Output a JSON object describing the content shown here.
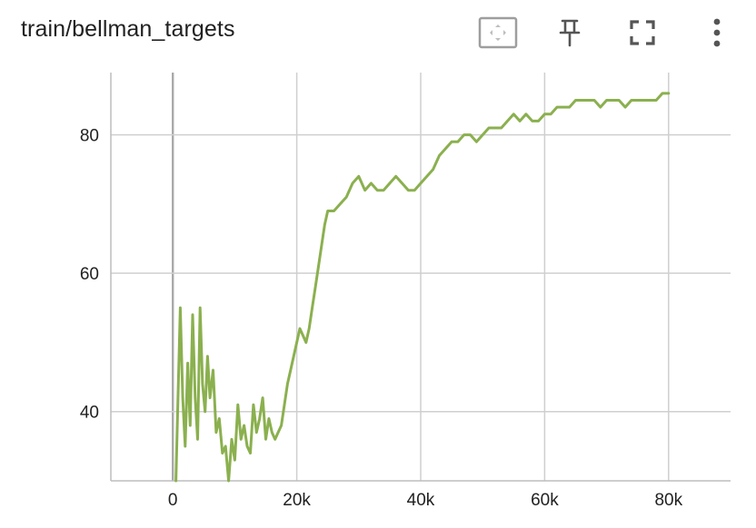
{
  "card": {
    "title": "train/bellman_targets"
  },
  "toolbar": {
    "buttons": [
      {
        "name": "fit-domain-button",
        "icon": "fit-to-data-icon"
      },
      {
        "name": "pin-button",
        "icon": "pin-icon"
      },
      {
        "name": "fullscreen-button",
        "icon": "fullscreen-icon"
      },
      {
        "name": "more-options-button",
        "icon": "more-vert-icon"
      }
    ]
  },
  "colors": {
    "series": "#8bb04f",
    "grid": "#cfcfcf",
    "axis": "#bdbdbd",
    "zero_line": "#a9a9a9",
    "text": "#212121",
    "icon": "#555555"
  },
  "chart_data": {
    "type": "line",
    "title": "train/bellman_targets",
    "xlabel": "",
    "ylabel": "",
    "xlim": [
      -10000,
      90000
    ],
    "ylim": [
      30,
      89
    ],
    "x_ticks": [
      0,
      20000,
      40000,
      60000,
      80000
    ],
    "x_tick_labels": [
      "0",
      "20k",
      "40k",
      "60k",
      "80k"
    ],
    "y_ticks": [
      40,
      60,
      80
    ],
    "y_tick_labels": [
      "40",
      "60",
      "80"
    ],
    "grid": true,
    "legend": "none",
    "series": [
      {
        "x": [
          500,
          800,
          1200,
          1600,
          2000,
          2400,
          2800,
          3200,
          3600,
          4000,
          4400,
          4800,
          5200,
          5600,
          6000,
          6500,
          7000,
          7500,
          8000,
          8500,
          9000,
          9500,
          10000,
          10500,
          11000,
          11500,
          12000,
          12500,
          13000,
          13500,
          14000,
          14500,
          15000,
          15500,
          16000,
          16500,
          17000,
          17500,
          18000,
          18500,
          19000,
          19500,
          20000,
          20500,
          21000,
          21500,
          22000,
          22500,
          23000,
          23500,
          24000,
          24500,
          25000,
          26000,
          27000,
          28000,
          29000,
          30000,
          31000,
          32000,
          33000,
          34000,
          35000,
          36000,
          37000,
          38000,
          39000,
          40000,
          41000,
          42000,
          43000,
          44000,
          45000,
          46000,
          47000,
          48000,
          49000,
          50000,
          51000,
          52000,
          53000,
          54000,
          55000,
          56000,
          57000,
          58000,
          59000,
          60000,
          61000,
          62000,
          63000,
          64000,
          65000,
          66000,
          67000,
          68000,
          69000,
          70000,
          71000,
          72000,
          73000,
          74000,
          75000,
          76000,
          77000,
          78000,
          79000,
          80000
        ],
        "values": [
          30,
          41,
          55,
          42,
          35,
          47,
          38,
          54,
          42,
          36,
          55,
          44,
          40,
          48,
          42,
          46,
          37,
          39,
          34,
          35,
          30,
          36,
          33,
          41,
          36,
          38,
          35,
          34,
          41,
          37,
          39,
          42,
          36,
          39,
          37,
          36,
          37,
          38,
          41,
          44,
          46,
          48,
          50,
          52,
          51,
          50,
          52,
          55,
          58,
          61,
          64,
          67,
          69,
          69,
          70,
          71,
          73,
          74,
          72,
          73,
          72,
          72,
          73,
          74,
          73,
          72,
          72,
          73,
          74,
          75,
          77,
          78,
          79,
          79,
          80,
          80,
          79,
          80,
          81,
          81,
          81,
          82,
          83,
          82,
          83,
          82,
          82,
          83,
          83,
          84,
          84,
          84,
          85,
          85,
          85,
          85,
          84,
          85,
          85,
          85,
          84,
          85,
          85,
          85,
          85,
          85,
          86,
          86
        ]
      }
    ]
  }
}
